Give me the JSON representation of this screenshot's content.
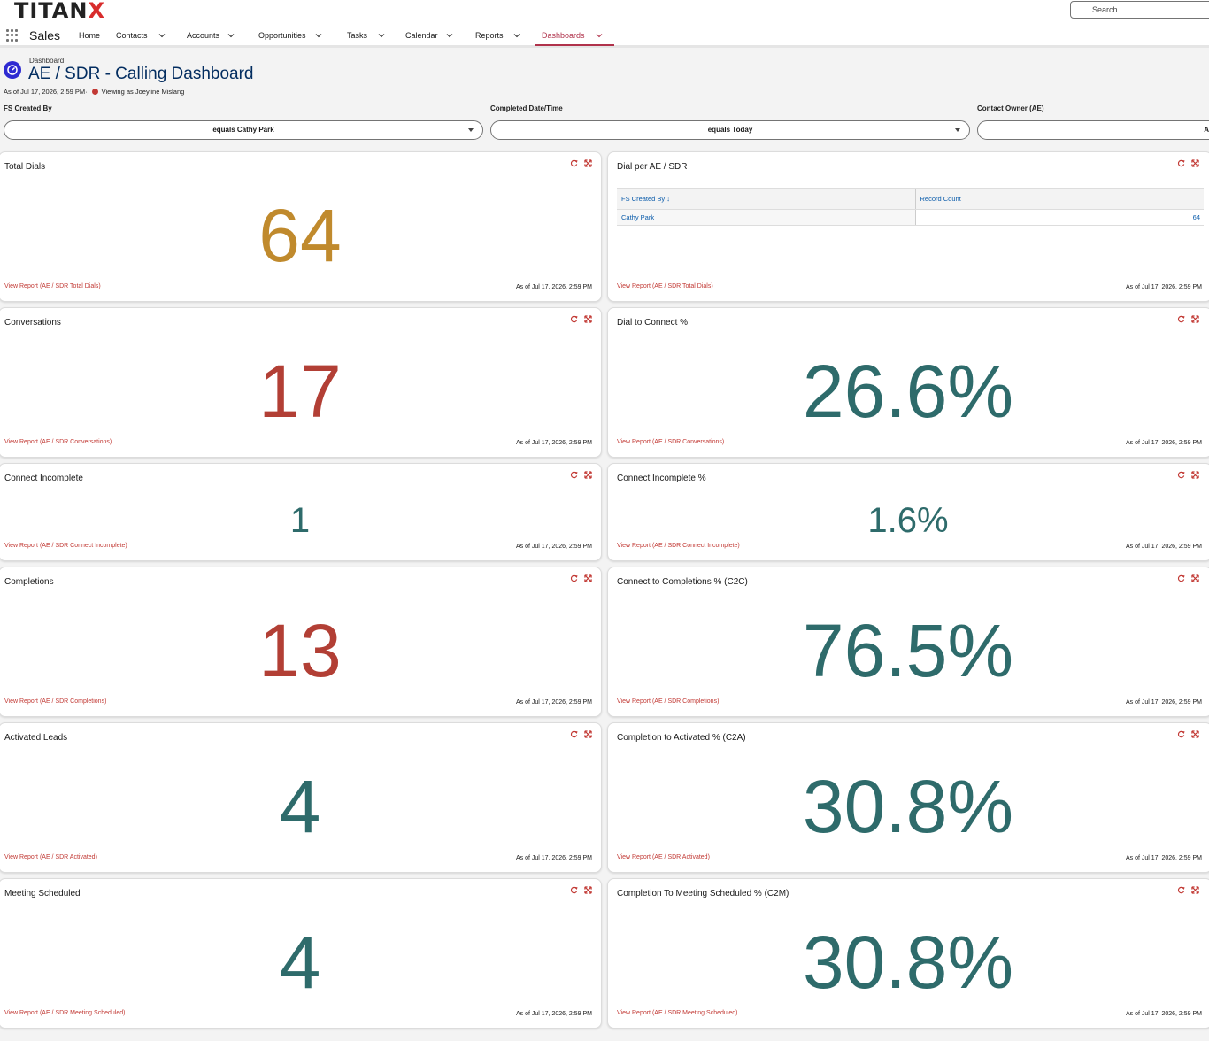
{
  "brand": {
    "logo_text": "TITAN",
    "logo_x": "X"
  },
  "search": {
    "placeholder": "Search..."
  },
  "nav": {
    "app_name": "Sales",
    "items": [
      {
        "label": "Home"
      },
      {
        "label": "Contacts"
      },
      {
        "label": "Accounts"
      },
      {
        "label": "Opportunities"
      },
      {
        "label": "Tasks"
      },
      {
        "label": "Calendar"
      },
      {
        "label": "Reports"
      },
      {
        "label": "Dashboards"
      }
    ]
  },
  "header": {
    "crumb": "Dashboard",
    "title": "AE / SDR - Calling Dashboard",
    "as_of": "As of Jul 17, 2026, 2:59 PM·",
    "viewing": "Viewing as Joeyline Mislang"
  },
  "filters": [
    {
      "label": "FS Created By",
      "value": "equals Cathy Park"
    },
    {
      "label": "Completed Date/Time",
      "value": "equals Today"
    },
    {
      "label": "Contact Owner (AE)",
      "value": "A"
    }
  ],
  "cards": {
    "total_dials": {
      "title": "Total Dials",
      "value": "64",
      "link": "View Report (AE / SDR Total Dials)",
      "asof": "As of Jul 17, 2026, 2:59 PM"
    },
    "dial_per": {
      "title": "Dial per AE / SDR",
      "col1": "FS Created By",
      "col2": "Record Count",
      "row_name": "Cathy Park",
      "row_value": "64",
      "link": "View Report (AE / SDR Total Dials)",
      "asof": "As of Jul 17, 2026, 2:59 PM"
    },
    "conversations": {
      "title": "Conversations",
      "value": "17",
      "link": "View Report (AE / SDR Conversations)",
      "asof": "As of Jul 17, 2026, 2:59 PM"
    },
    "dial_connect": {
      "title": "Dial to Connect %",
      "value": "26.6%",
      "link": "View Report (AE / SDR Conversations)",
      "asof": "As of Jul 17, 2026, 2:59 PM"
    },
    "connect_incomplete": {
      "title": "Connect Incomplete",
      "value": "1",
      "link": "View Report (AE / SDR Connect Incomplete)",
      "asof": "As of Jul 17, 2026, 2:59 PM"
    },
    "connect_incomplete_pct": {
      "title": "Connect Incomplete %",
      "value": "1.6%",
      "link": "View Report (AE / SDR Connect Incomplete)",
      "asof": "As of Jul 17, 2026, 2:59 PM"
    },
    "completions": {
      "title": "Completions",
      "value": "13",
      "link": "View Report (AE / SDR Completions)",
      "asof": "As of Jul 17, 2026, 2:59 PM"
    },
    "c2c": {
      "title": "Connect to Completions % (C2C)",
      "value": "76.5%",
      "link": "View Report (AE / SDR Completions)",
      "asof": "As of Jul 17, 2026, 2:59 PM"
    },
    "activated": {
      "title": "Activated Leads",
      "value": "4",
      "link": "View Report (AE / SDR Activated)",
      "asof": "As of Jul 17, 2026, 2:59 PM"
    },
    "c2a": {
      "title": "Completion to Activated % (C2A)",
      "value": "30.8%",
      "link": "View Report (AE / SDR Activated)",
      "asof": "As of Jul 17, 2026, 2:59 PM"
    },
    "meeting": {
      "title": "Meeting Scheduled",
      "value": "4",
      "link": "View Report (AE / SDR Meeting Scheduled)",
      "asof": "As of Jul 17, 2026, 2:59 PM"
    },
    "c2m": {
      "title": "Completion To Meeting Scheduled % (C2M)",
      "value": "30.8%",
      "link": "View Report (AE / SDR Meeting Scheduled)",
      "asof": "As of Jul 17, 2026, 2:59 PM"
    }
  },
  "colors": {
    "gold": "#c08a2d",
    "red": "#b23f35",
    "teal": "#2e6b6b",
    "link_red": "#c23934",
    "title_blue": "#032d60"
  },
  "icons": {
    "refresh": "refresh-icon",
    "expand": "expand-icon",
    "search": "search-icon",
    "apps": "app-launcher-icon",
    "dashboard": "dashboard-icon"
  }
}
